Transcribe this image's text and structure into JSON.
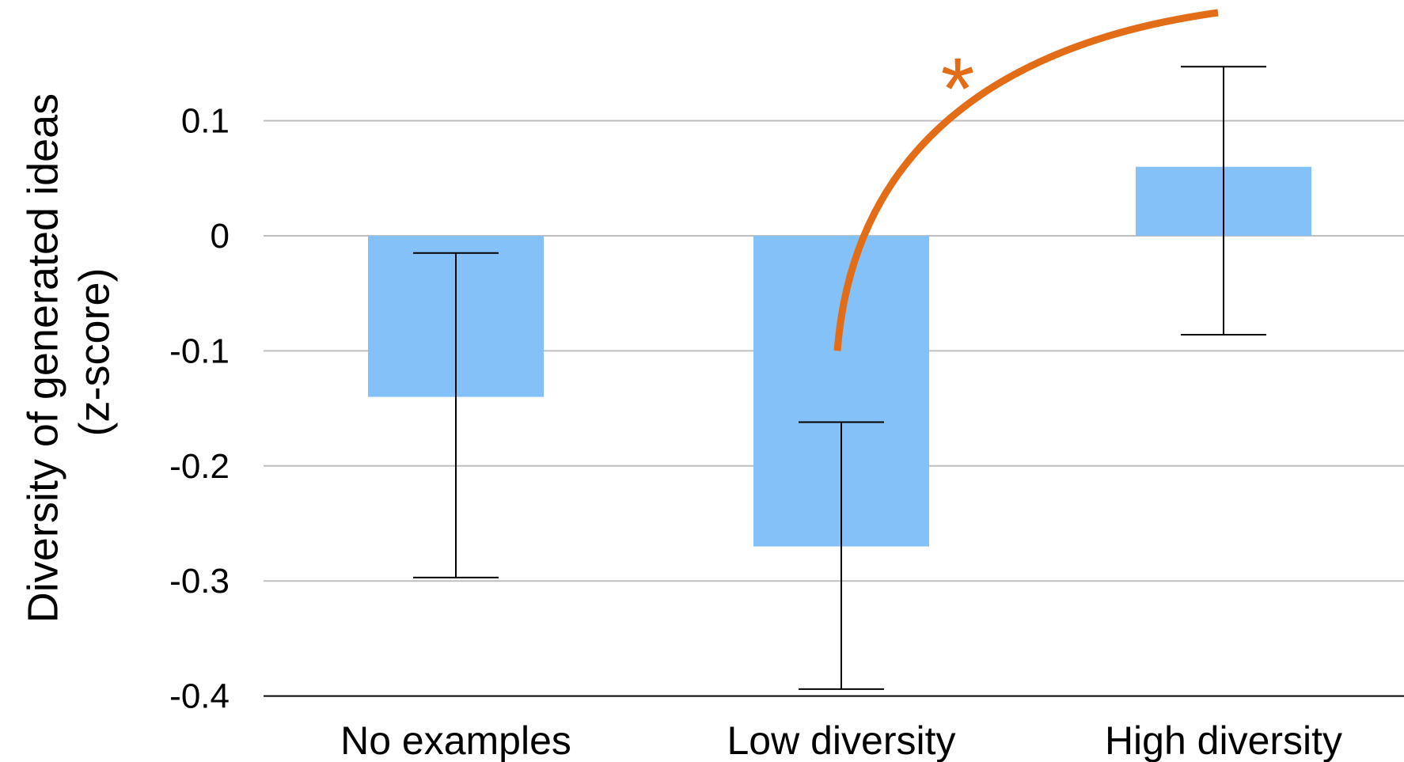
{
  "chart_data": {
    "type": "bar",
    "title": "",
    "xlabel": "",
    "ylabel_lines": [
      "Diversity of generated ideas",
      "(z-score)"
    ],
    "categories": [
      "No examples",
      "Low diversity",
      "High diversity"
    ],
    "values": [
      -0.14,
      -0.27,
      0.06
    ],
    "error_low": [
      -0.297,
      -0.394,
      -0.086
    ],
    "error_high": [
      -0.015,
      -0.162,
      0.147
    ],
    "ylim": [
      -0.4,
      0.2
    ],
    "yticks": [
      0.1,
      0,
      -0.1,
      -0.2,
      -0.3,
      -0.4
    ],
    "ytick_labels": [
      "0.1",
      "0",
      "-0.1",
      "-0.2",
      "-0.3",
      "-0.4"
    ],
    "grid": true,
    "significance": {
      "marker": "*",
      "from_category": "Low diversity",
      "to_category": "High diversity"
    }
  },
  "colors": {
    "bar": "#85C1F9",
    "grid": "#BFBFBF",
    "axis": "#000000",
    "errorbar": "#000000",
    "annotation": "#E36C17"
  }
}
